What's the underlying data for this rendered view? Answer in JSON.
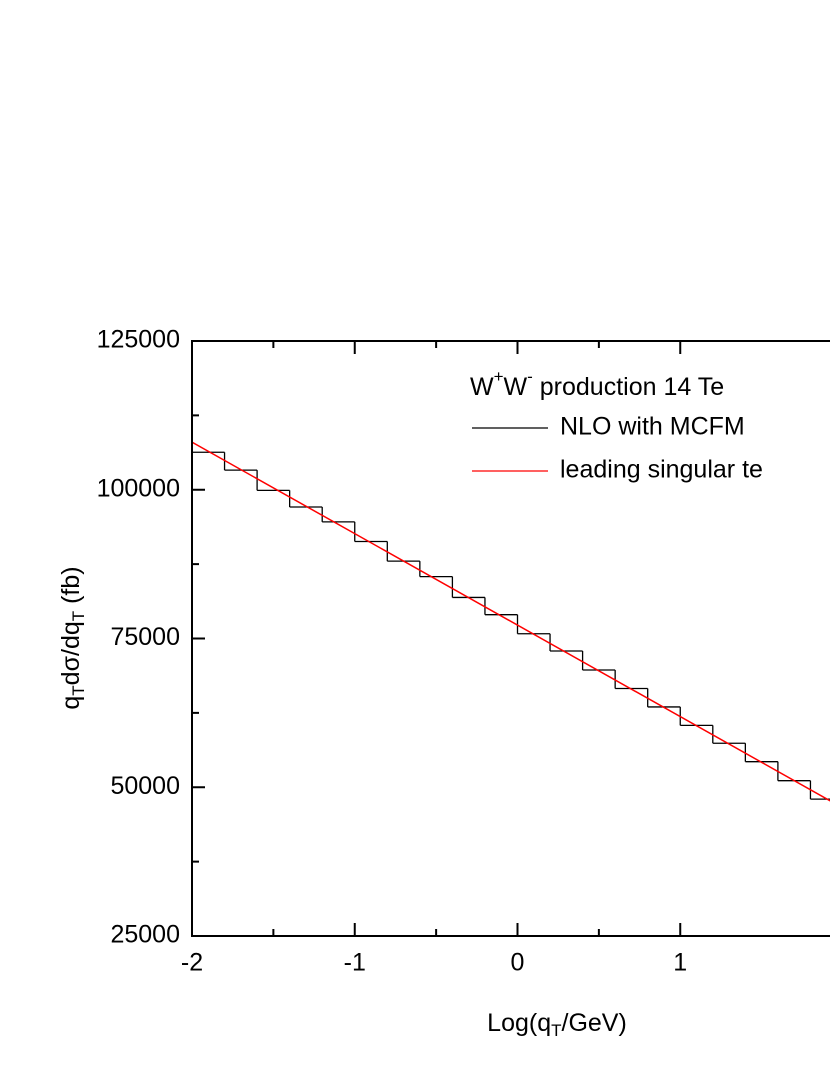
{
  "chart_data": {
    "type": "step",
    "x_label": {
      "parts": [
        "Log(q",
        "T",
        "/GeV)"
      ]
    },
    "y_label": {
      "parts": [
        "q",
        "T",
        "dσ/dq",
        "T",
        "  (fb)"
      ]
    },
    "legend_title": {
      "parts": [
        "W",
        "+",
        "W",
        "-",
        " production 14 Te"
      ]
    },
    "xlim": [
      -2,
      2
    ],
    "ylim": [
      25000,
      125000
    ],
    "xticks": [
      -2,
      -1,
      0,
      1
    ],
    "yticks": [
      25000,
      50000,
      75000,
      100000,
      125000
    ],
    "series": [
      {
        "name": "NLO with MCFM",
        "color": "#000000",
        "kind": "histogram",
        "bins": [
          -2,
          -1.8,
          -1.6,
          -1.4,
          -1.2,
          -1,
          -0.8,
          -0.6,
          -0.4,
          -0.2,
          0,
          0.2,
          0.4,
          0.6,
          0.8,
          1,
          1.2,
          1.4,
          1.6,
          1.8,
          2
        ],
        "values": [
          106300,
          103300,
          99900,
          97100,
          94600,
          91300,
          88000,
          85400,
          81900,
          79000,
          75800,
          72900,
          69700,
          66600,
          63500,
          60400,
          57400,
          54300,
          51100,
          48000
        ]
      },
      {
        "name": "leading singular te",
        "color": "#ff0000",
        "kind": "line",
        "x": [
          -2,
          2
        ],
        "values": [
          108000,
          46500
        ]
      }
    ]
  }
}
